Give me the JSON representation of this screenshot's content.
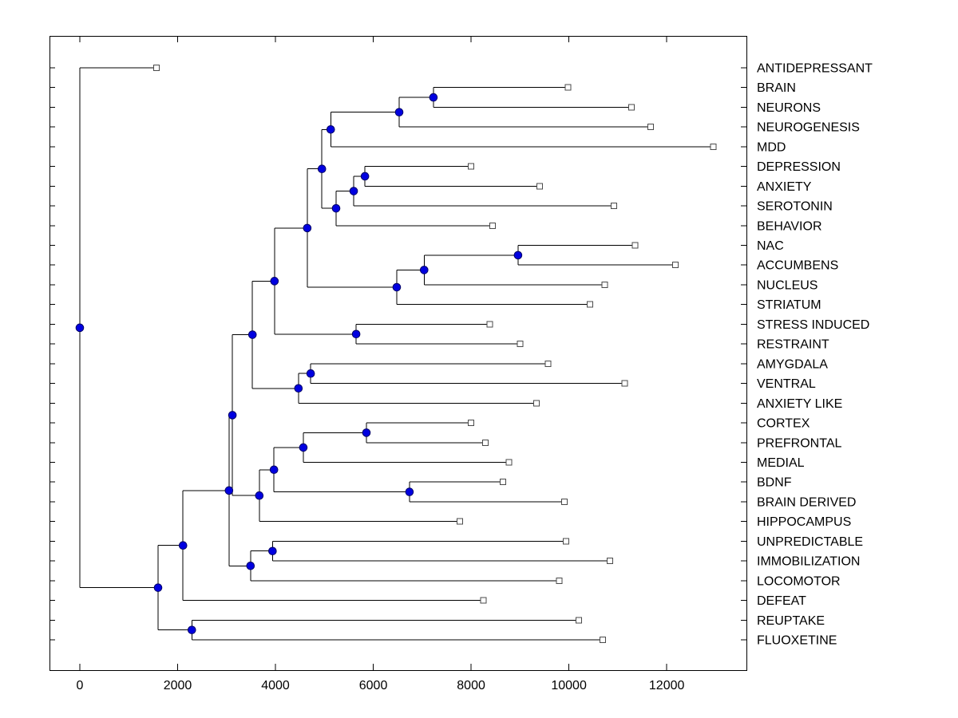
{
  "figure": {
    "background": "#ffffff",
    "axes_background": "#ffffff",
    "axis_color": "#000000",
    "text_color": "#000000"
  },
  "chart_data": {
    "type": "dendrogram",
    "orientation": "horizontal-root-left",
    "title": "",
    "xlabel": "",
    "ylabel": "",
    "grid": false,
    "legend": null,
    "xlim": [
      -620,
      13630
    ],
    "x_ticks": [
      0,
      2000,
      4000,
      6000,
      8000,
      10000,
      12000
    ],
    "line_color": "#000000",
    "node_marker": {
      "shape": "filled-circle",
      "fill": "#0000e0",
      "edge": "#000066",
      "radius": 4.8
    },
    "leaf_marker": {
      "shape": "open-square",
      "fill": "#ffffff",
      "edge": "#4a4a4a",
      "size": 7
    },
    "leaves": [
      {
        "label": "ANTIDEPRESSANT",
        "x": 1570
      },
      {
        "label": "BRAIN",
        "x": 9980
      },
      {
        "label": "NEURONS",
        "x": 11280
      },
      {
        "label": "NEUROGENESIS",
        "x": 11670
      },
      {
        "label": "MDD",
        "x": 12950
      },
      {
        "label": "DEPRESSION",
        "x": 8000
      },
      {
        "label": "ANXIETY",
        "x": 9400
      },
      {
        "label": "SEROTONIN",
        "x": 10920
      },
      {
        "label": "BEHAVIOR",
        "x": 8440
      },
      {
        "label": "NAC",
        "x": 11350
      },
      {
        "label": "ACCUMBENS",
        "x": 12180
      },
      {
        "label": "NUCLEUS",
        "x": 10730
      },
      {
        "label": "STRIATUM",
        "x": 10430
      },
      {
        "label": "STRESS INDUCED",
        "x": 8380
      },
      {
        "label": "RESTRAINT",
        "x": 9000
      },
      {
        "label": "AMYGDALA",
        "x": 9570
      },
      {
        "label": "VENTRAL",
        "x": 11140
      },
      {
        "label": "ANXIETY LIKE",
        "x": 9340
      },
      {
        "label": "CORTEX",
        "x": 8000
      },
      {
        "label": "PREFRONTAL",
        "x": 8290
      },
      {
        "label": "MEDIAL",
        "x": 8770
      },
      {
        "label": "BDNF",
        "x": 8650
      },
      {
        "label": "BRAIN DERIVED",
        "x": 9910
      },
      {
        "label": "HIPPOCAMPUS",
        "x": 7770
      },
      {
        "label": "UNPREDICTABLE",
        "x": 9940
      },
      {
        "label": "IMMOBILIZATION",
        "x": 10840
      },
      {
        "label": "LOCOMOTOR",
        "x": 9800
      },
      {
        "label": "DEFEAT",
        "x": 8250
      },
      {
        "label": "REUPTAKE",
        "x": 10200
      },
      {
        "label": "FLUOXETINE",
        "x": 10690
      }
    ],
    "merges": [
      {
        "id": "m1",
        "children": [
          "BRAIN",
          "NEURONS"
        ],
        "x": 7230
      },
      {
        "id": "m2",
        "children": [
          "m1",
          "NEUROGENESIS"
        ],
        "x": 6530
      },
      {
        "id": "m3",
        "children": [
          "m2",
          "MDD"
        ],
        "x": 5130
      },
      {
        "id": "m4",
        "children": [
          "DEPRESSION",
          "ANXIETY"
        ],
        "x": 5830
      },
      {
        "id": "m5",
        "children": [
          "m4",
          "SEROTONIN"
        ],
        "x": 5600
      },
      {
        "id": "m6",
        "children": [
          "m5",
          "BEHAVIOR"
        ],
        "x": 5240
      },
      {
        "id": "m7",
        "children": [
          "m3",
          "m6"
        ],
        "x": 4950
      },
      {
        "id": "m8",
        "children": [
          "NAC",
          "ACCUMBENS"
        ],
        "x": 8960
      },
      {
        "id": "m9",
        "children": [
          "m8",
          "NUCLEUS"
        ],
        "x": 7040
      },
      {
        "id": "m10",
        "children": [
          "m9",
          "STRIATUM"
        ],
        "x": 6480
      },
      {
        "id": "m11",
        "children": [
          "m7",
          "m10"
        ],
        "x": 4650
      },
      {
        "id": "m12",
        "children": [
          "STRESS INDUCED",
          "RESTRAINT"
        ],
        "x": 5650
      },
      {
        "id": "m13",
        "children": [
          "m11",
          "m12"
        ],
        "x": 3980
      },
      {
        "id": "m14",
        "children": [
          "AMYGDALA",
          "VENTRAL"
        ],
        "x": 4720
      },
      {
        "id": "m15",
        "children": [
          "m14",
          "ANXIETY LIKE"
        ],
        "x": 4470
      },
      {
        "id": "m16",
        "children": [
          "m13",
          "m15"
        ],
        "x": 3530
      },
      {
        "id": "m17",
        "children": [
          "CORTEX",
          "PREFRONTAL"
        ],
        "x": 5860
      },
      {
        "id": "m18",
        "children": [
          "m17",
          "MEDIAL"
        ],
        "x": 4570
      },
      {
        "id": "m19",
        "children": [
          "BDNF",
          "BRAIN DERIVED"
        ],
        "x": 6740
      },
      {
        "id": "m20",
        "children": [
          "m18",
          "m19"
        ],
        "x": 3970
      },
      {
        "id": "m21",
        "children": [
          "m20",
          "HIPPOCAMPUS"
        ],
        "x": 3670
      },
      {
        "id": "m22",
        "children": [
          "m16",
          "m21"
        ],
        "x": 3120
      },
      {
        "id": "m23",
        "children": [
          "UNPREDICTABLE",
          "IMMOBILIZATION"
        ],
        "x": 3940
      },
      {
        "id": "m24",
        "children": [
          "m23",
          "LOCOMOTOR"
        ],
        "x": 3490
      },
      {
        "id": "m25",
        "children": [
          "m22",
          "m24"
        ],
        "x": 3050
      },
      {
        "id": "m26",
        "children": [
          "m25",
          "DEFEAT"
        ],
        "x": 2110
      },
      {
        "id": "m27",
        "children": [
          "REUPTAKE",
          "FLUOXETINE"
        ],
        "x": 2290
      },
      {
        "id": "m28",
        "children": [
          "m26",
          "m27"
        ],
        "x": 1600
      },
      {
        "id": "m29",
        "children": [
          "ANTIDEPRESSANT",
          "m28"
        ],
        "x": 0
      }
    ]
  }
}
